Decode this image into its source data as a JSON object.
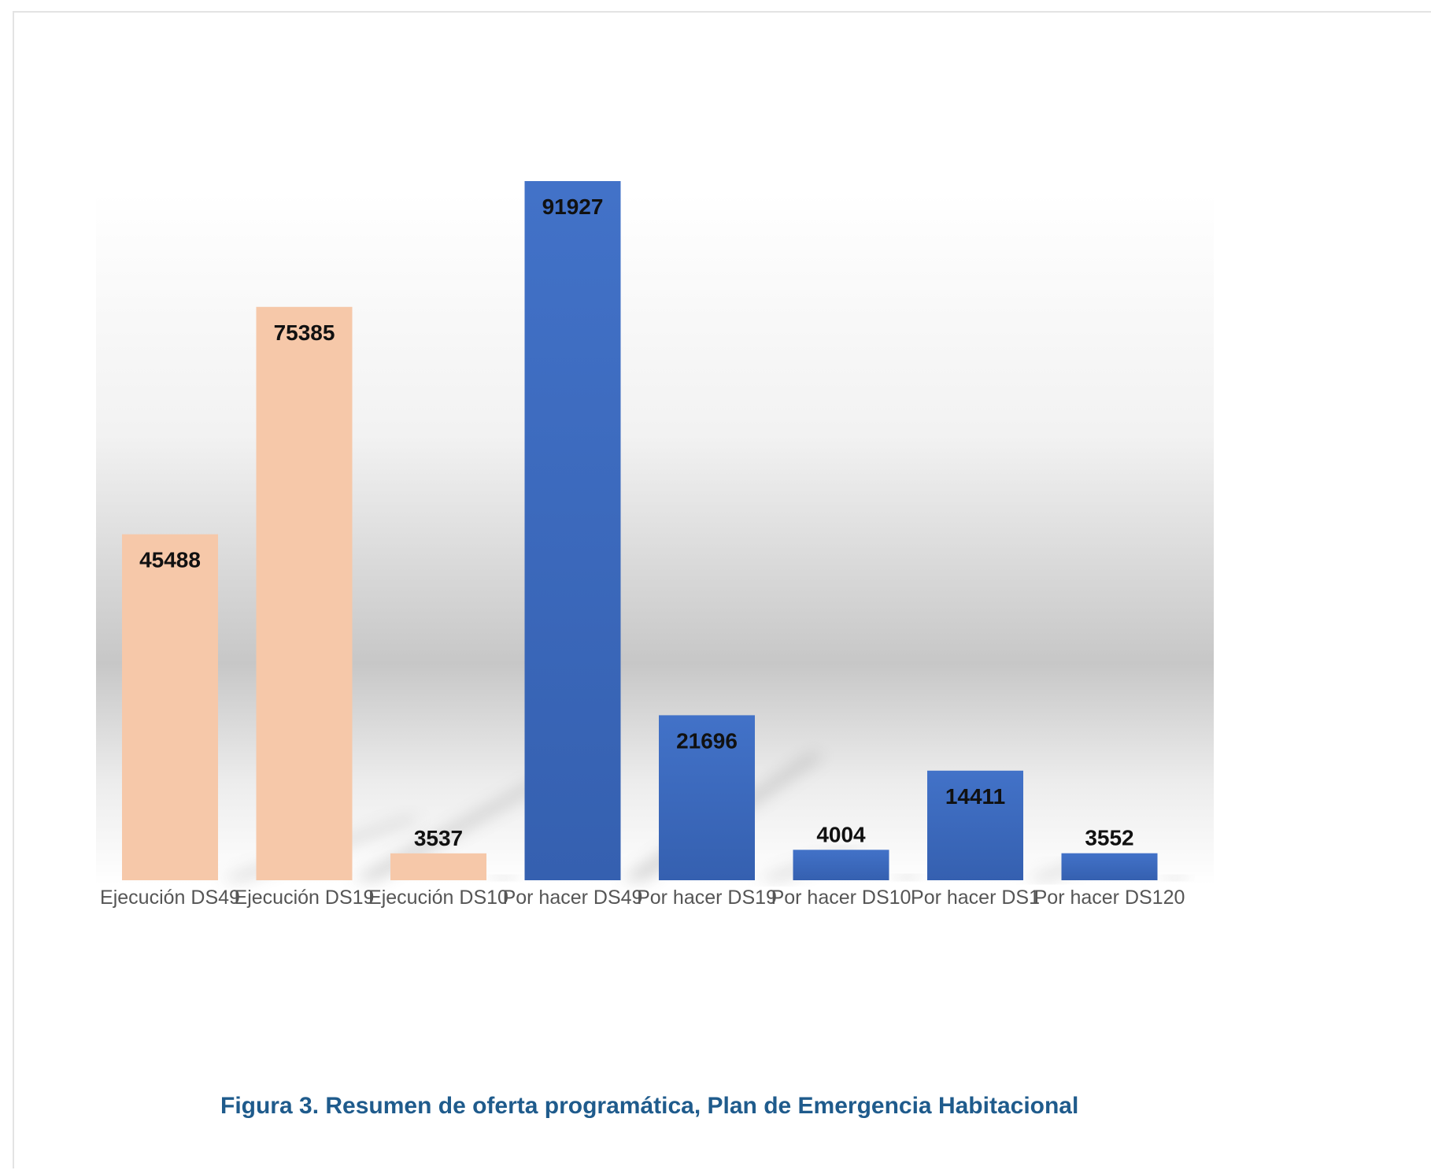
{
  "chart_data": {
    "type": "bar",
    "categories": [
      "Ejecución DS49",
      "Ejecución DS19",
      "Ejecución DS10",
      "Por hacer DS49",
      "Por hacer DS19",
      "Por hacer DS10",
      "Por hacer DS1",
      "Por hacer DS120"
    ],
    "values": [
      45488,
      75385,
      3537,
      91927,
      21696,
      4004,
      14411,
      3552
    ],
    "bar_colors": [
      "#f6c8a9",
      "#f6c8a9",
      "#f6c8a9",
      "#3f6fc4",
      "#3f6fc4",
      "#3f6fc4",
      "#3f6fc4",
      "#3f6fc4"
    ],
    "data_labels": [
      "45488",
      "75385",
      "3537",
      "91927",
      "21696",
      "4004",
      "14411",
      "3552"
    ],
    "title": "",
    "xlabel": "",
    "ylabel": "",
    "ylim": [
      0,
      91927
    ],
    "grid": false,
    "legend": "none"
  },
  "caption": "Figura 3. Resumen de oferta programática, Plan de Emergencia Habitacional",
  "colors": {
    "execution_bar": "#f6c8a9",
    "todo_bar": "#3f6fc4",
    "caption_text": "#1f5b8c"
  }
}
